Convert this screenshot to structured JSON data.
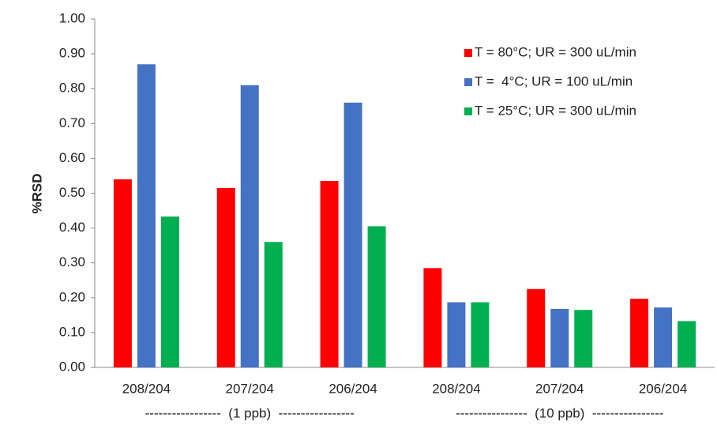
{
  "chart_data": {
    "type": "bar",
    "y_label": "%RSD",
    "categories": [
      "208/204",
      "207/204",
      "206/204",
      "208/204",
      "207/204",
      "206/204"
    ],
    "group_labels": [
      "-----------------  (1 ppb)  -----------------",
      "----------------  (10 ppb)  ----------------"
    ],
    "series": [
      {
        "name": "T = 80°C; UR = 300 uL/min",
        "color": "#ff0000",
        "values": [
          0.54,
          0.515,
          0.535,
          0.285,
          0.225,
          0.197
        ]
      },
      {
        "name": "T =  4°C; UR = 100 uL/min",
        "color": "#4472c4",
        "values": [
          0.87,
          0.81,
          0.76,
          0.187,
          0.168,
          0.172
        ]
      },
      {
        "name": "T = 25°C; UR = 300 uL/min",
        "color": "#00b050",
        "values": [
          0.433,
          0.36,
          0.405,
          0.187,
          0.165,
          0.133
        ]
      }
    ],
    "ylim": [
      0,
      1
    ],
    "yticks": [
      {
        "value": 0,
        "label": "0.00"
      },
      {
        "value": 0.1,
        "label": "0.10"
      },
      {
        "value": 0.2,
        "label": "0.20"
      },
      {
        "value": 0.3,
        "label": "0.30"
      },
      {
        "value": 0.4,
        "label": "0.40"
      },
      {
        "value": 0.5,
        "label": "0.50"
      },
      {
        "value": 0.6,
        "label": "0.60"
      },
      {
        "value": 0.7,
        "label": "0.70"
      },
      {
        "value": 0.8,
        "label": "0.80"
      },
      {
        "value": 0.9,
        "label": "0.90"
      },
      {
        "value": 1,
        "label": "1.00"
      }
    ],
    "grid": false,
    "legend": "top-right"
  }
}
